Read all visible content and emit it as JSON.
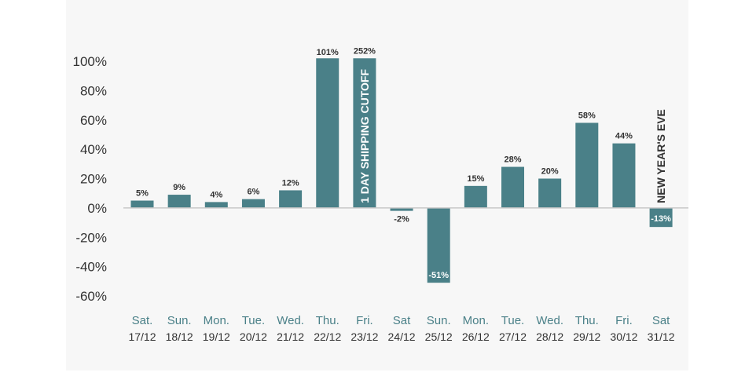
{
  "chart_data": {
    "type": "bar",
    "title": "",
    "xlabel": "",
    "ylabel": "",
    "ylim": [
      -60,
      100
    ],
    "yticks": [
      "100%",
      "80%",
      "60%",
      "40%",
      "20%",
      "0%",
      "-20%",
      "-40%",
      "-60%"
    ],
    "bar_color": "#4a8088",
    "categories": [
      {
        "day": "Sat.",
        "date": "17/12"
      },
      {
        "day": "Sun.",
        "date": "18/12"
      },
      {
        "day": "Mon.",
        "date": "19/12"
      },
      {
        "day": "Tue.",
        "date": "20/12"
      },
      {
        "day": "Wed.",
        "date": "21/12"
      },
      {
        "day": "Thu.",
        "date": "22/12"
      },
      {
        "day": "Fri.",
        "date": "23/12"
      },
      {
        "day": "Sat",
        "date": "24/12"
      },
      {
        "day": "Sun.",
        "date": "25/12"
      },
      {
        "day": "Mon.",
        "date": "26/12"
      },
      {
        "day": "Tue.",
        "date": "27/12"
      },
      {
        "day": "Wed.",
        "date": "28/12"
      },
      {
        "day": "Thu.",
        "date": "29/12"
      },
      {
        "day": "Fri.",
        "date": "30/12"
      },
      {
        "day": "Sat",
        "date": "31/12"
      }
    ],
    "values": [
      5,
      9,
      4,
      6,
      12,
      101,
      252,
      -2,
      -51,
      15,
      28,
      20,
      58,
      44,
      -13
    ],
    "value_labels": [
      "5%",
      "9%",
      "4%",
      "6%",
      "12%",
      "101%",
      "252%",
      "-2%",
      "-51%",
      "15%",
      "28%",
      "20%",
      "58%",
      "44%",
      "-13%"
    ],
    "annotations": [
      {
        "category_index": 6,
        "text": "1 DAY SHIPPING CUTOFF"
      },
      {
        "category_index": 14,
        "text": "NEW YEAR'S EVE"
      }
    ]
  }
}
